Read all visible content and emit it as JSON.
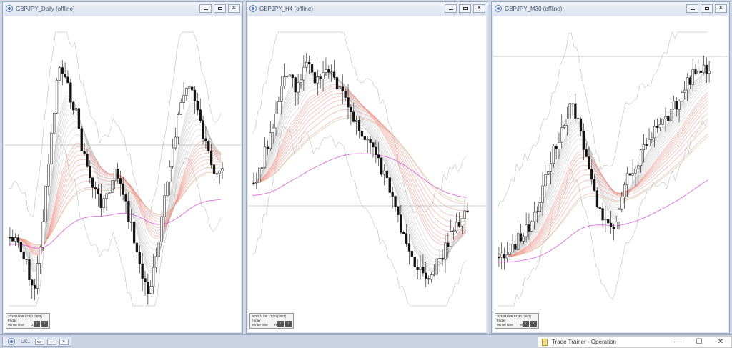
{
  "windows": [
    {
      "title": "GBPJPY_Daily (offline)",
      "info": {
        "date": "2020/11/09 17:00 (UST)",
        "day": "Friday",
        "mode": "Winter time",
        "value": "D1"
      }
    },
    {
      "title": "GBPJPY_H4 (offline)",
      "info": {
        "date": "2020/11/09 17:00 (UST)",
        "day": "Friday",
        "mode": "Winter time",
        "value": "H4"
      }
    },
    {
      "title": "GBPJPY_M30 (offline)",
      "info": {
        "date": "2020/11/09 17:30 (UST)",
        "day": "Friday",
        "mode": "Winter time",
        "value": "M30"
      }
    }
  ],
  "window_buttons": {
    "minimize": "minimize-icon",
    "maximize": "maximize-icon",
    "close": "close-icon"
  },
  "nav_buttons": {
    "back": "‹",
    "forward": "›"
  },
  "taskbar": {
    "minimized_title": "UK...",
    "trainer_title": "Trade Trainer - Operation",
    "trainer_minimize": "—",
    "trainer_maximize": "☐",
    "trainer_close": "✕"
  },
  "colors": {
    "candle": "#111111",
    "ema_red": "#f08a80",
    "ema_grey": "#bdbdbd",
    "ma_magenta": "#d94bd9",
    "band": "#9c9c9c",
    "line_olive": "#c8c38a"
  }
}
